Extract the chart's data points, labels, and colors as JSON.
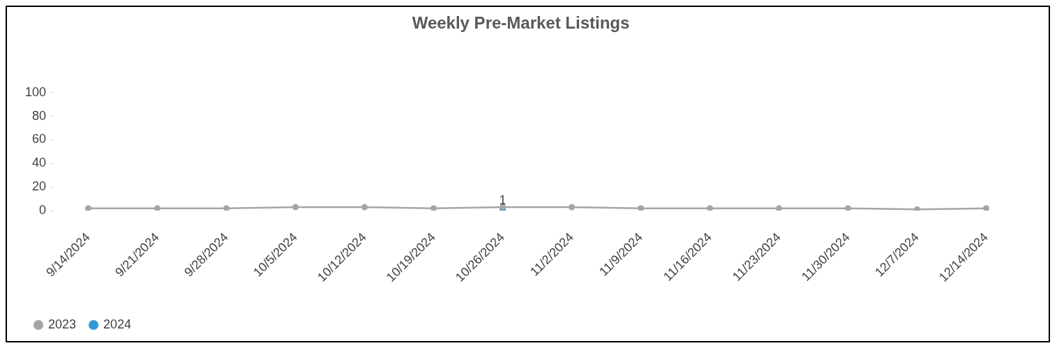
{
  "chart_data": {
    "type": "line",
    "title": "Weekly Pre-Market Listings",
    "categories": [
      "9/14/2024",
      "9/21/2024",
      "9/28/2024",
      "10/5/2024",
      "10/12/2024",
      "10/19/2024",
      "10/26/2024",
      "11/2/2024",
      "11/9/2024",
      "11/16/2024",
      "11/23/2024",
      "11/30/2024",
      "12/7/2024",
      "12/14/2024"
    ],
    "series": [
      {
        "name": "2023",
        "color": "#a5a5a5",
        "values": [
          2,
          2,
          2,
          3,
          3,
          2,
          3,
          3,
          2,
          2,
          2,
          2,
          1,
          2
        ]
      },
      {
        "name": "2024",
        "color": "#2e9bd6",
        "values": [
          null,
          null,
          null,
          null,
          null,
          null,
          1,
          null,
          null,
          null,
          null,
          null,
          null,
          null
        ],
        "value_labels": [
          null,
          null,
          null,
          null,
          null,
          null,
          "1",
          null,
          null,
          null,
          null,
          null,
          null,
          null
        ]
      }
    ],
    "ylim": [
      0,
      100
    ],
    "yticks": [
      0,
      20,
      40,
      60,
      80,
      100
    ],
    "grid": false,
    "legend": "bottom left",
    "marker": "circle",
    "line_style": "solid"
  }
}
